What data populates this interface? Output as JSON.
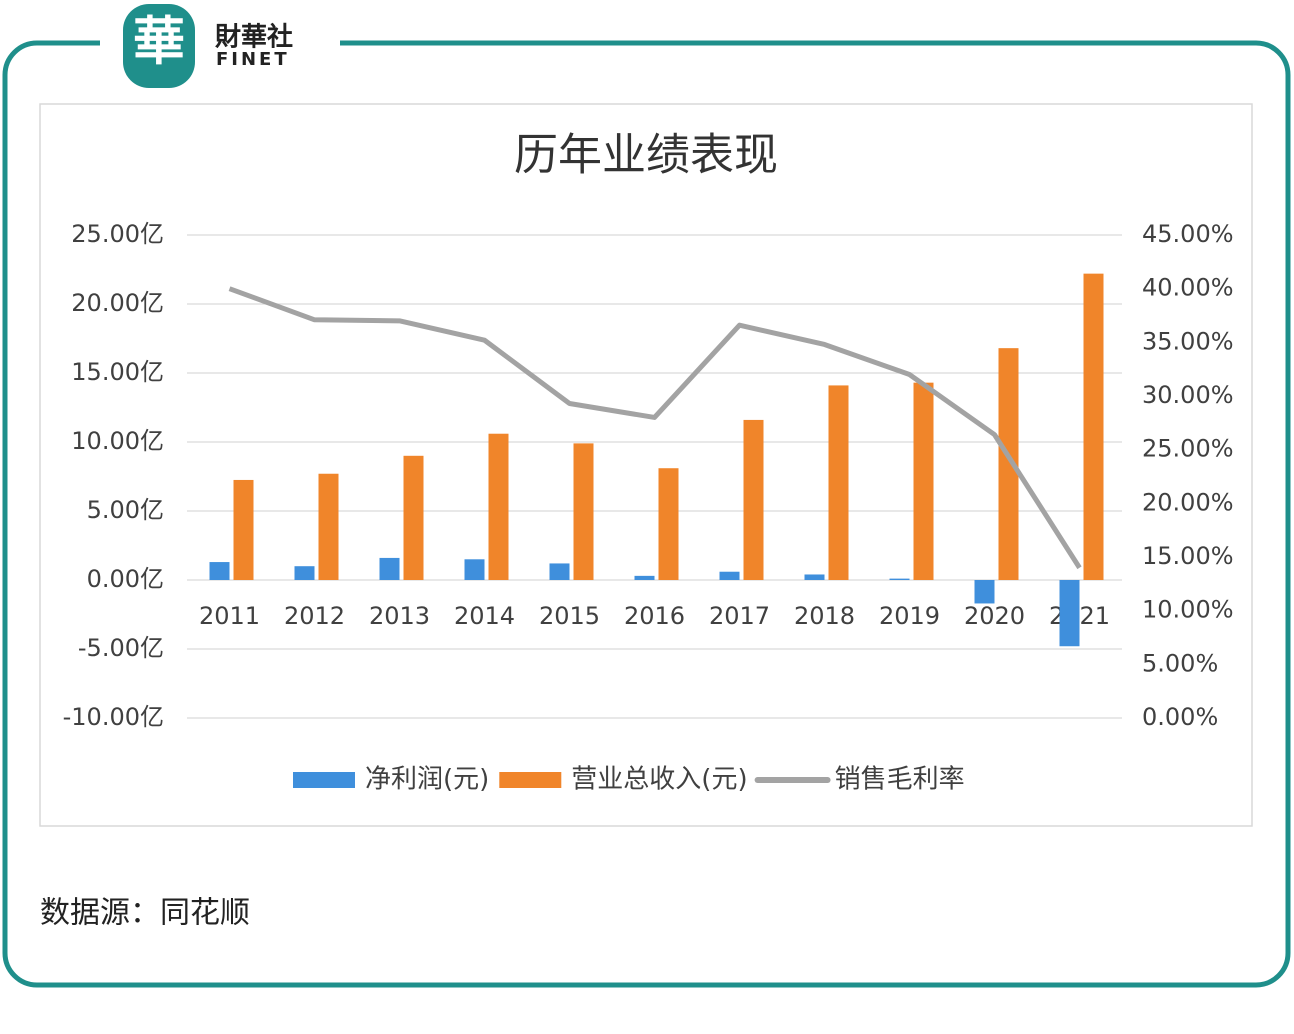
{
  "logo": {
    "mark": "華",
    "name": "財華社",
    "sub": "FINET"
  },
  "source": "数据源：同花顺",
  "chart_data": {
    "type": "bar-line",
    "title": "历年业绩表现",
    "categories": [
      "2011",
      "2012",
      "2013",
      "2014",
      "2015",
      "2016",
      "2017",
      "2018",
      "2019",
      "2020",
      "2021"
    ],
    "series": [
      {
        "name": "净利润(元)",
        "type": "bar",
        "color": "#3f8fdc",
        "values": [
          1.3,
          1.0,
          1.6,
          1.5,
          1.2,
          0.3,
          0.6,
          0.4,
          0.1,
          -1.7,
          -4.8
        ]
      },
      {
        "name": "营业总收入(元)",
        "type": "bar",
        "color": "#f0852a",
        "values": [
          7.25,
          7.7,
          9.0,
          10.6,
          9.9,
          8.1,
          11.6,
          14.1,
          14.3,
          16.8,
          22.2
        ]
      },
      {
        "name": "销售毛利率",
        "type": "line",
        "axis": "y2",
        "color": "#a3a3a3",
        "values": [
          40.0,
          37.1,
          37.0,
          35.2,
          29.3,
          28.0,
          36.6,
          34.8,
          32.0,
          26.4,
          14.0
        ]
      }
    ],
    "ylim": [
      -10,
      25
    ],
    "yticks": [
      {
        "value": -10,
        "label": "-10.00亿"
      },
      {
        "value": -5,
        "label": "-5.00亿"
      },
      {
        "value": 0,
        "label": "0.00亿"
      },
      {
        "value": 5,
        "label": "5.00亿"
      },
      {
        "value": 10,
        "label": "10.00亿"
      },
      {
        "value": 15,
        "label": "15.00亿"
      },
      {
        "value": 20,
        "label": "20.00亿"
      },
      {
        "value": 25,
        "label": "25.00亿"
      }
    ],
    "y2lim": [
      0,
      45
    ],
    "y2ticks": [
      {
        "value": 0,
        "label": "0.00%"
      },
      {
        "value": 5,
        "label": "5.00%"
      },
      {
        "value": 10,
        "label": "10.00%"
      },
      {
        "value": 15,
        "label": "15.00%"
      },
      {
        "value": 20,
        "label": "20.00%"
      },
      {
        "value": 25,
        "label": "25.00%"
      },
      {
        "value": 30,
        "label": "30.00%"
      },
      {
        "value": 35,
        "label": "35.00%"
      },
      {
        "value": 40,
        "label": "40.00%"
      },
      {
        "value": 45,
        "label": "45.00%"
      }
    ],
    "grid": true,
    "legend": "bottom"
  }
}
